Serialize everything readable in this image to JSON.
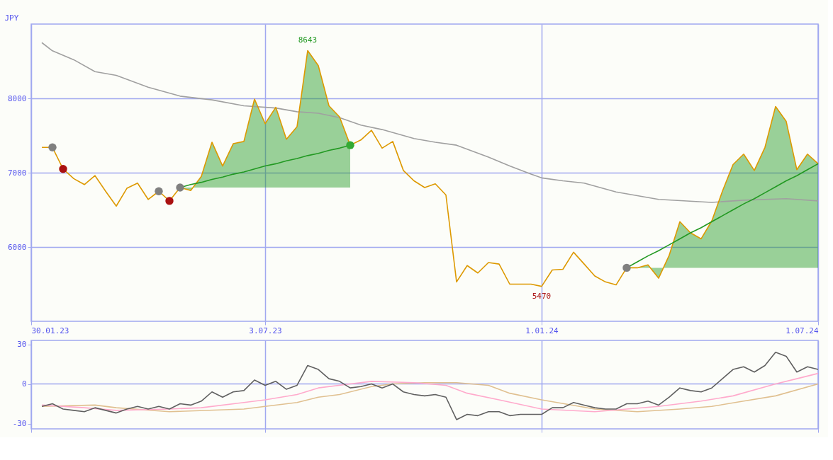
{
  "chart_data": [
    {
      "type": "line",
      "ylabel": "JPY",
      "xlim": [
        "2023-01-30",
        "2024-07-01"
      ],
      "xticks": [
        {
          "value": "2023-01-30",
          "label": "30.01.23"
        },
        {
          "value": "2023-07-03",
          "label": "3.07.23"
        },
        {
          "value": "2024-01-01",
          "label": "1.01.24"
        },
        {
          "value": "2024-07-01",
          "label": "1.07.24"
        }
      ],
      "ylim": [
        5000,
        9000
      ],
      "yticks": [
        6000,
        7000,
        8000
      ],
      "grid": true,
      "x": [
        "2023-02-06",
        "2023-02-13",
        "2023-02-20",
        "2023-02-27",
        "2023-03-06",
        "2023-03-13",
        "2023-03-20",
        "2023-03-27",
        "2023-04-03",
        "2023-04-10",
        "2023-04-17",
        "2023-04-24",
        "2023-05-01",
        "2023-05-08",
        "2023-05-15",
        "2023-05-22",
        "2023-05-29",
        "2023-06-05",
        "2023-06-12",
        "2023-06-19",
        "2023-06-26",
        "2023-07-03",
        "2023-07-10",
        "2023-07-17",
        "2023-07-24",
        "2023-07-31",
        "2023-08-07",
        "2023-08-14",
        "2023-08-21",
        "2023-08-28",
        "2023-09-04",
        "2023-09-11",
        "2023-09-18",
        "2023-09-25",
        "2023-10-02",
        "2023-10-09",
        "2023-10-16",
        "2023-10-23",
        "2023-10-30",
        "2023-11-06",
        "2023-11-13",
        "2023-11-20",
        "2023-11-27",
        "2023-12-04",
        "2023-12-11",
        "2023-12-18",
        "2023-12-25",
        "2024-01-01",
        "2024-01-08",
        "2024-01-15",
        "2024-01-22",
        "2024-01-29",
        "2024-02-05",
        "2024-02-12",
        "2024-02-19",
        "2024-02-26",
        "2024-03-04",
        "2024-03-11",
        "2024-03-18",
        "2024-03-25",
        "2024-04-01",
        "2024-04-08",
        "2024-04-15",
        "2024-04-22",
        "2024-04-29",
        "2024-05-06",
        "2024-05-13",
        "2024-05-20",
        "2024-05-27",
        "2024-06-03",
        "2024-06-10",
        "2024-06-17",
        "2024-06-24",
        "2024-07-01"
      ],
      "series": [
        {
          "color": "#229922",
          "x": [
            "2023-05-08",
            "2023-05-15",
            "2023-05-22",
            "2023-05-29",
            "2023-06-05",
            "2023-06-12",
            "2023-06-19",
            "2023-06-26",
            "2023-07-03",
            "2023-07-10",
            "2023-07-17",
            "2023-07-24",
            "2023-07-31",
            "2023-08-07",
            "2023-08-14",
            "2023-08-21",
            "2023-08-28"
          ],
          "values": [
            6800,
            6840,
            6870,
            6910,
            6940,
            6980,
            7010,
            7050,
            7090,
            7120,
            7160,
            7190,
            7230,
            7260,
            7300,
            7330,
            7370
          ],
          "lower": [
            6800,
            6800,
            6800,
            6800,
            6800,
            6800,
            6800,
            6800,
            6800,
            6800,
            6800,
            6800,
            6800,
            6800,
            6800,
            6800,
            6800
          ],
          "upper": [
            6800,
            6760,
            6950,
            7410,
            7090,
            7390,
            7420,
            7990,
            7660,
            7880,
            7450,
            7620,
            8643,
            8440,
            7900,
            7750,
            7370
          ]
        },
        {
          "color": "#229922",
          "x": [
            "2024-02-26",
            "2024-03-04",
            "2024-03-11",
            "2024-03-18",
            "2024-03-25",
            "2024-04-01",
            "2024-04-08",
            "2024-04-15",
            "2024-04-22",
            "2024-04-29",
            "2024-05-06",
            "2024-05-13",
            "2024-05-20",
            "2024-05-27",
            "2024-06-03",
            "2024-06-10",
            "2024-06-17",
            "2024-06-24",
            "2024-07-01"
          ],
          "values": [
            5720,
            5800,
            5880,
            5950,
            6030,
            6110,
            6190,
            6260,
            6340,
            6420,
            6500,
            6580,
            6650,
            6730,
            6810,
            6890,
            6960,
            7040,
            7120
          ],
          "lower": [
            5720,
            5720,
            5720,
            5720,
            5720,
            5720,
            5720,
            5720,
            5720,
            5720,
            5720,
            5720,
            5720,
            5720,
            5720,
            5720,
            5720,
            5720,
            5720
          ],
          "upper": [
            5720,
            5720,
            5760,
            5580,
            5890,
            6340,
            6190,
            6110,
            6350,
            6750,
            7110,
            7250,
            7030,
            7340,
            7890,
            7690,
            7040,
            7250,
            7120
          ]
        },
        {
          "color": "#a0a0a0",
          "x": [
            "2023-02-06",
            "2023-02-13",
            "2023-02-27",
            "2023-03-13",
            "2023-03-27",
            "2023-04-17",
            "2023-05-08",
            "2023-05-29",
            "2023-06-19",
            "2023-07-10",
            "2023-07-24",
            "2023-08-07",
            "2023-08-21",
            "2023-09-04",
            "2023-09-18",
            "2023-10-09",
            "2023-10-23",
            "2023-11-06",
            "2023-11-27",
            "2023-12-11",
            "2023-12-25",
            "2024-01-01",
            "2024-01-15",
            "2024-01-29",
            "2024-02-19",
            "2024-03-18",
            "2024-04-22",
            "2024-05-13",
            "2024-06-10",
            "2024-07-01"
          ],
          "values": [
            8750,
            8640,
            8520,
            8360,
            8310,
            8150,
            8030,
            7980,
            7900,
            7870,
            7820,
            7800,
            7740,
            7640,
            7580,
            7460,
            7410,
            7370,
            7210,
            7090,
            6980,
            6930,
            6890,
            6860,
            6740,
            6640,
            6600,
            6630,
            6650,
            6620
          ]
        },
        {
          "color": "#dd9900",
          "values": [
            7340,
            7340,
            7050,
            6920,
            6840,
            6960,
            6750,
            6550,
            6790,
            6860,
            6640,
            6750,
            6620,
            6800,
            6760,
            6950,
            7410,
            7090,
            7390,
            7420,
            7990,
            7660,
            7880,
            7450,
            7620,
            8643,
            8440,
            7900,
            7750,
            7370,
            7440,
            7570,
            7330,
            7420,
            7030,
            6890,
            6800,
            6850,
            6700,
            5530,
            5750,
            5650,
            5790,
            5770,
            5500,
            5500,
            5500,
            5470,
            5690,
            5700,
            5930,
            5770,
            5610,
            5530,
            5490,
            5720,
            5720,
            5760,
            5580,
            5890,
            6340,
            6190,
            6110,
            6350,
            6750,
            7110,
            7250,
            7030,
            7340,
            7890,
            7690,
            7040,
            7250,
            7120
          ]
        },
        {
          "type": "scatter",
          "color": "#808080",
          "x": [
            "2023-02-13",
            "2023-04-24",
            "2023-05-08",
            "2024-02-26"
          ],
          "values": [
            7340,
            6750,
            6800,
            5720
          ]
        },
        {
          "type": "scatter",
          "color": "#aa1111",
          "x": [
            "2023-02-20",
            "2023-05-01"
          ],
          "values": [
            7050,
            6620
          ]
        },
        {
          "type": "scatter",
          "color": "#33aa33",
          "x": [
            "2023-08-28"
          ],
          "values": [
            7370
          ]
        }
      ],
      "annotations": [
        {
          "text": "8643",
          "x": "2023-07-31",
          "y": 8643
        },
        {
          "text": "5470",
          "x": "2024-01-01",
          "y": 5470
        }
      ]
    },
    {
      "type": "line",
      "xlim": [
        "2023-01-30",
        "2024-07-01"
      ],
      "xticks": [
        {
          "value": "2023-01-30",
          "label": null
        },
        {
          "value": "2023-07-03",
          "label": null
        },
        {
          "value": "2024-01-01",
          "label": null
        },
        {
          "value": "2024-07-01",
          "label": null
        }
      ],
      "ylim": [
        -34,
        33
      ],
      "yticks": [
        -30,
        0,
        30
      ],
      "grid": "x",
      "tick_labels": "y",
      "ref_lines": [
        {
          "axis": "y",
          "value": 0,
          "color": "#a0a8f0"
        }
      ],
      "x": [
        "2023-02-06",
        "2023-02-13",
        "2023-02-20",
        "2023-02-27",
        "2023-03-06",
        "2023-03-13",
        "2023-03-20",
        "2023-03-27",
        "2023-04-03",
        "2023-04-10",
        "2023-04-17",
        "2023-04-24",
        "2023-05-01",
        "2023-05-08",
        "2023-05-15",
        "2023-05-22",
        "2023-05-29",
        "2023-06-05",
        "2023-06-12",
        "2023-06-19",
        "2023-06-26",
        "2023-07-03",
        "2023-07-10",
        "2023-07-17",
        "2023-07-24",
        "2023-07-31",
        "2023-08-07",
        "2023-08-14",
        "2023-08-21",
        "2023-08-28",
        "2023-09-04",
        "2023-09-11",
        "2023-09-18",
        "2023-09-25",
        "2023-10-02",
        "2023-10-09",
        "2023-10-16",
        "2023-10-23",
        "2023-10-30",
        "2023-11-06",
        "2023-11-13",
        "2023-11-20",
        "2023-11-27",
        "2023-12-04",
        "2023-12-11",
        "2023-12-18",
        "2023-12-25",
        "2024-01-01",
        "2024-01-08",
        "2024-01-15",
        "2024-01-22",
        "2024-01-29",
        "2024-02-05",
        "2024-02-12",
        "2024-02-19",
        "2024-02-26",
        "2024-03-04",
        "2024-03-11",
        "2024-03-18",
        "2024-03-25",
        "2024-04-01",
        "2024-04-08",
        "2024-04-15",
        "2024-04-22",
        "2024-04-29",
        "2024-05-06",
        "2024-05-13",
        "2024-05-20",
        "2024-05-27",
        "2024-06-03",
        "2024-06-10",
        "2024-06-17",
        "2024-06-24",
        "2024-07-01"
      ],
      "series": [
        {
          "color": "#e0c090",
          "x": [
            "2023-02-06",
            "2023-03-13",
            "2023-03-27",
            "2023-05-01",
            "2023-06-19",
            "2023-07-03",
            "2023-07-24",
            "2023-08-07",
            "2023-08-21",
            "2023-09-11",
            "2023-09-25",
            "2023-10-16",
            "2023-11-06",
            "2023-11-27",
            "2023-12-11",
            "2024-01-01",
            "2024-02-05",
            "2024-03-04",
            "2024-04-01",
            "2024-04-22",
            "2024-05-13",
            "2024-06-03",
            "2024-07-01"
          ],
          "values": [
            -17,
            -16,
            -18,
            -21,
            -19,
            -17,
            -14,
            -10,
            -8,
            -2,
            0,
            1,
            1,
            -1,
            -7,
            -12,
            -19,
            -21,
            -19,
            -17,
            -13,
            -9,
            0
          ]
        },
        {
          "color": "#ffaacc",
          "x": [
            "2023-02-06",
            "2023-03-06",
            "2023-03-27",
            "2023-05-01",
            "2023-05-22",
            "2023-06-19",
            "2023-07-03",
            "2023-07-24",
            "2023-08-07",
            "2023-08-28",
            "2023-09-11",
            "2023-10-09",
            "2023-10-30",
            "2023-11-13",
            "2023-12-04",
            "2024-01-01",
            "2024-02-05",
            "2024-02-26",
            "2024-03-18",
            "2024-04-15",
            "2024-05-06",
            "2024-06-03",
            "2024-06-17",
            "2024-07-01"
          ],
          "values": [
            -16,
            -18,
            -20,
            -19,
            -18,
            -14,
            -12,
            -8,
            -3,
            0,
            2,
            1,
            -1,
            -7,
            -12,
            -19,
            -21,
            -19,
            -17,
            -13,
            -9,
            0,
            4,
            8
          ]
        },
        {
          "color": "#606060",
          "values": [
            -17,
            -15,
            -19,
            -20,
            -21,
            -18,
            -20,
            -22,
            -19,
            -17,
            -19,
            -17,
            -19,
            -15,
            -16,
            -13,
            -6,
            -10,
            -6,
            -5,
            3,
            -1,
            2,
            -4,
            -1,
            14,
            11,
            4,
            2,
            -3,
            -2,
            0,
            -3,
            0,
            -6,
            -8,
            -9,
            -8,
            -10,
            -27,
            -23,
            -24,
            -21,
            -21,
            -24,
            -23,
            -23,
            -23,
            -18,
            -18,
            -14,
            -16,
            -18,
            -19,
            -19,
            -15,
            -15,
            -13,
            -16,
            -10,
            -3,
            -5,
            -6,
            -3,
            4,
            11,
            13,
            9,
            14,
            24,
            21,
            9,
            13,
            11
          ]
        }
      ]
    }
  ]
}
